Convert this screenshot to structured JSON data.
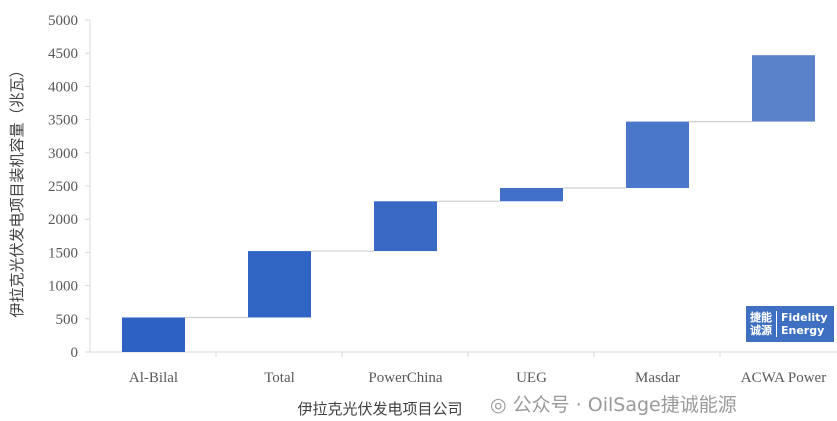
{
  "chart_data": {
    "type": "waterfall",
    "title": "",
    "xlabel": "伊拉克光伏发电项目公司",
    "ylabel": "伊拉克光伏发电项目装机容量（兆瓦）",
    "ylim": [
      0,
      5000
    ],
    "yticks": [
      0,
      500,
      1000,
      1500,
      2000,
      2500,
      3000,
      3500,
      4000,
      4500,
      5000
    ],
    "categories": [
      "Al-Bilal",
      "Total",
      "PowerChina",
      "UEG",
      "Masdar",
      "ACWA Power"
    ],
    "bars": [
      {
        "base": 0,
        "top": 520
      },
      {
        "base": 520,
        "top": 1520
      },
      {
        "base": 1520,
        "top": 2270
      },
      {
        "base": 2270,
        "top": 2470
      },
      {
        "base": 2470,
        "top": 3470
      },
      {
        "base": 3470,
        "top": 4470
      }
    ],
    "increments": [
      520,
      1000,
      750,
      200,
      1000,
      1000
    ],
    "connectors": true,
    "grid": false,
    "colors": [
      "#2e62c2",
      "#3165c3",
      "#3a69c5",
      "#4070c8",
      "#4a77c9",
      "#5a82ca"
    ]
  },
  "watermark": {
    "text": "公众号 · OilSage捷诚能源",
    "icon": "wechat-icon"
  },
  "logo": {
    "cn_line1": "捷能",
    "cn_line2": "诚源",
    "en_line1": "Fidelity",
    "en_line2": "Energy"
  }
}
